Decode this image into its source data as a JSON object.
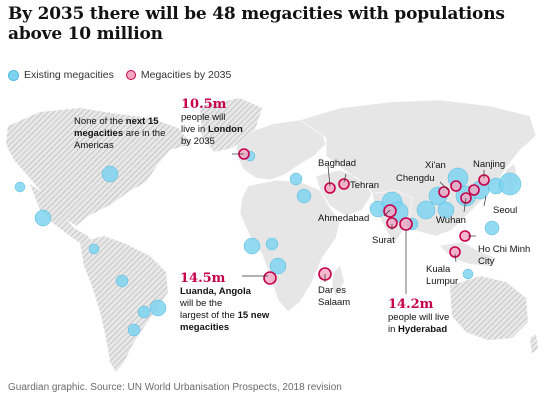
{
  "title": "By 2035 there will be 48 megacities with populations above 10 million",
  "legend": {
    "existing": "Existing megacities",
    "future": "Megacities by 2035"
  },
  "colors": {
    "existing_fill": "#7fd3f0",
    "future_stroke": "#c7004c",
    "future_fill": "#f3a8c2",
    "land": "#e6e6e6",
    "hatch": "#bdbdbd"
  },
  "annotations": {
    "americas": {
      "pre": "None of the ",
      "bold": "next 15 megacities",
      "post": " are in the Americas"
    },
    "london": {
      "figure": "10.5m",
      "line1": "people will",
      "line2": "live in ",
      "bold": "London",
      "line3": "by 2035"
    },
    "luanda": {
      "figure": "14.5m",
      "bold1": "Luanda, Angola",
      "line2": "will be the",
      "line3": "largest of the ",
      "bold2": "15 new megacities"
    },
    "hyderabad": {
      "figure": "14.2m",
      "line1": "people will live",
      "line2": "in ",
      "bold": "Hyderabad"
    }
  },
  "city_labels": {
    "baghdad": "Baghdad",
    "tehran": "Tehran",
    "ahmedabad": "Ahmedabad",
    "surat": "Surat",
    "dar": "Dar es Salaam",
    "xian": "Xi'an",
    "chengdu": "Chengdu",
    "nanjing": "Nanjing",
    "seoul": "Seoul",
    "wuhan": "Wuhan",
    "hochiminh": "Ho Chi Minh City",
    "kualalumpur": "Kuala Lumpur"
  },
  "source": "Guardian graphic. Source: UN World Urbanisation Prospects, 2018 revision"
}
